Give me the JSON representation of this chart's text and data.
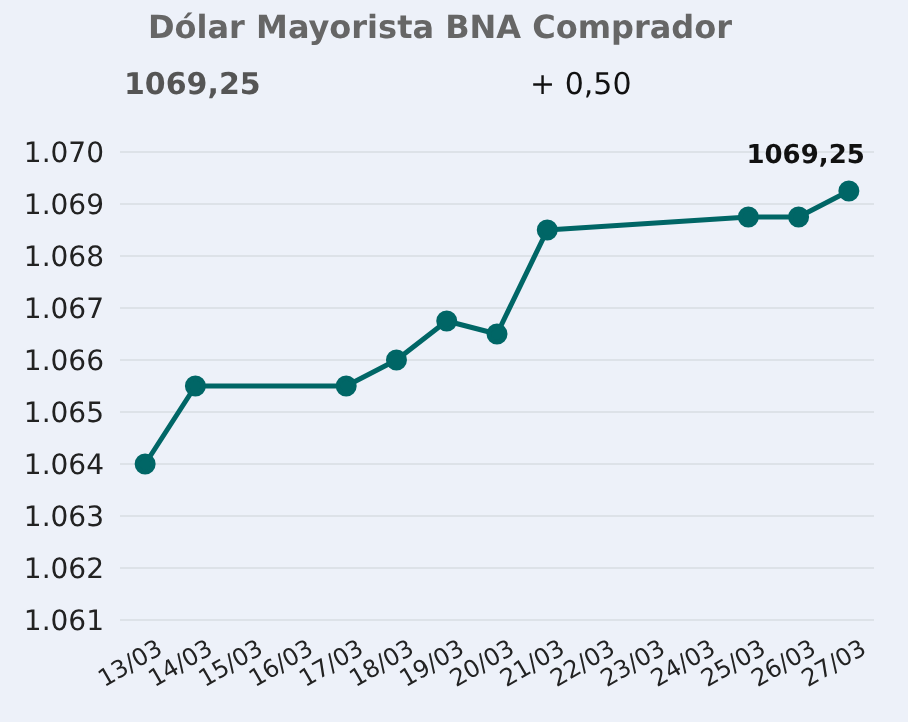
{
  "chart_data": {
    "type": "line",
    "title": "Dólar Mayorista BNA Comprador",
    "subtitle": "1069,25",
    "annotations": [
      "+ 0,50"
    ],
    "categories": [
      "13/03",
      "14/03",
      "15/03",
      "16/03",
      "17/03",
      "18/03",
      "19/03",
      "20/03",
      "21/03",
      "22/03",
      "23/03",
      "24/03",
      "25/03",
      "26/03",
      "27/03"
    ],
    "series": [
      {
        "color": "#006666",
        "values": [
          1064,
          1065.5,
          null,
          null,
          1065.5,
          1066,
          1066.75,
          1066.5,
          1068.5,
          null,
          null,
          null,
          1068.75,
          1068.75,
          1069.25
        ],
        "value_labels": [
          null,
          null,
          null,
          null,
          null,
          null,
          null,
          null,
          null,
          null,
          null,
          null,
          null,
          null,
          "1069,25"
        ]
      }
    ],
    "ylim": [
      1061,
      1070
    ],
    "yticks": [
      {
        "value": 1061,
        "label": "1.061"
      },
      {
        "value": 1062,
        "label": "1.062"
      },
      {
        "value": 1063,
        "label": "1.063"
      },
      {
        "value": 1064,
        "label": "1.064"
      },
      {
        "value": 1065,
        "label": "1.065"
      },
      {
        "value": 1066,
        "label": "1.066"
      },
      {
        "value": 1067,
        "label": "1.067"
      },
      {
        "value": 1068,
        "label": "1.068"
      },
      {
        "value": 1069,
        "label": "1.069"
      },
      {
        "value": 1070,
        "label": "1.070"
      }
    ],
    "grid": "y",
    "marker": "circle",
    "line_style": "solid",
    "legend": false
  }
}
